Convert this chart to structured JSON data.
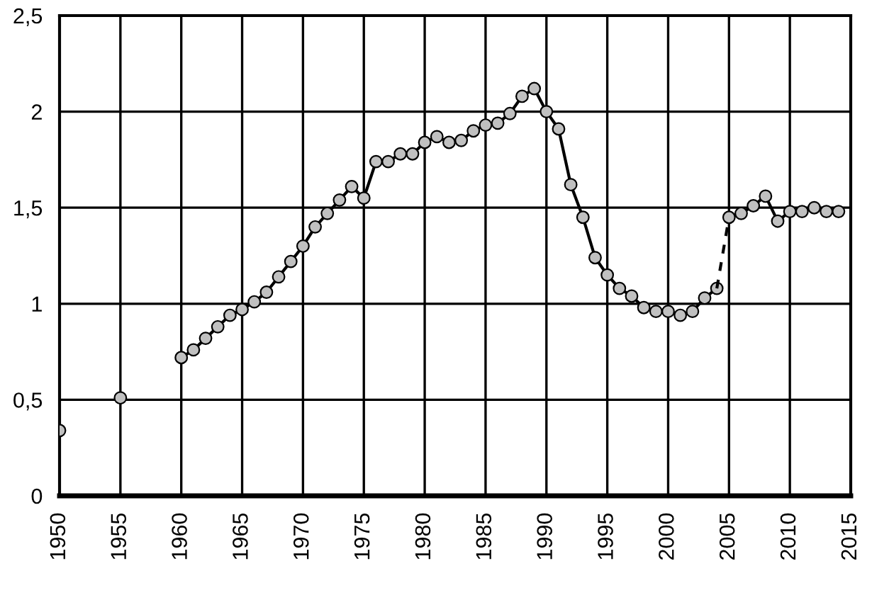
{
  "chart_data": {
    "type": "line",
    "series": [
      {
        "type": "scatter",
        "color": "#c0c0c0",
        "x": [
          1950,
          1955
        ],
        "values": [
          0.34,
          0.51
        ]
      },
      {
        "color": "#c0c0c0",
        "marker": "circle",
        "line_style": "solid",
        "x": [
          1960,
          1961,
          1962,
          1963,
          1964,
          1965,
          1966,
          1967,
          1968,
          1969,
          1970,
          1971,
          1972,
          1973,
          1974,
          1975,
          1976,
          1977,
          1978,
          1979,
          1980,
          1981,
          1982,
          1983,
          1984,
          1985,
          1986,
          1987,
          1988,
          1989,
          1990,
          1991,
          1992,
          1993,
          1994,
          1995,
          1996,
          1997,
          1998,
          1999,
          2000,
          2001,
          2002,
          2003,
          2004
        ],
        "values": [
          0.72,
          0.76,
          0.82,
          0.88,
          0.94,
          0.97,
          1.01,
          1.06,
          1.14,
          1.22,
          1.3,
          1.4,
          1.47,
          1.54,
          1.61,
          1.55,
          1.74,
          1.74,
          1.78,
          1.78,
          1.84,
          1.87,
          1.84,
          1.85,
          1.9,
          1.93,
          1.94,
          1.99,
          2.08,
          2.12,
          2.0,
          1.91,
          1.62,
          1.45,
          1.24,
          1.15,
          1.08,
          1.04,
          0.98,
          0.96,
          0.96,
          0.94,
          0.96,
          1.03,
          1.08
        ]
      },
      {
        "color": "#000000",
        "line_style": "dashed",
        "x": [
          2004,
          2005
        ],
        "values": [
          1.08,
          1.45
        ]
      },
      {
        "color": "#c0c0c0",
        "marker": "circle",
        "line_style": "solid",
        "x": [
          2005,
          2006,
          2007,
          2008,
          2009,
          2010,
          2011,
          2012,
          2013,
          2014
        ],
        "values": [
          1.45,
          1.47,
          1.51,
          1.56,
          1.43,
          1.48,
          1.48,
          1.5,
          1.48,
          1.48
        ]
      }
    ],
    "xlim": [
      1950,
      2015
    ],
    "xticks": [
      1950,
      1955,
      1960,
      1965,
      1970,
      1975,
      1980,
      1985,
      1990,
      1995,
      2000,
      2005,
      2010,
      2015
    ],
    "ylim": [
      0,
      2.5
    ],
    "yticks": [
      0,
      {
        "value": 0.5,
        "label": "0,5"
      },
      1,
      {
        "value": 1.5,
        "label": "1,5"
      },
      2,
      {
        "value": 2.5,
        "label": "2,5"
      }
    ],
    "grid": true
  }
}
